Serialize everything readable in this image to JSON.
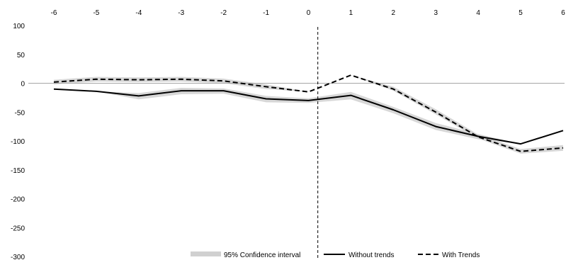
{
  "chart_data": {
    "type": "line",
    "x": [
      -6,
      -5,
      -4,
      -3,
      -2,
      -1,
      0,
      1,
      2,
      3,
      4,
      5,
      6
    ],
    "x_ticks": [
      "-6",
      "-5",
      "-4",
      "-3",
      "-2",
      "-1",
      "0",
      "1",
      "2",
      "3",
      "4",
      "5",
      "6"
    ],
    "y_ticks": [
      "100",
      "50",
      "0",
      "-50",
      "-100",
      "-150",
      "-200",
      "-250",
      "-300"
    ],
    "ylim": [
      -300,
      100
    ],
    "x_axis_position": "top",
    "reference_line_between": [
      0,
      1
    ],
    "grid": false,
    "legend_position": "bottom",
    "series": [
      {
        "name": "95% Confidence interval",
        "style": "band",
        "color": "#d0d0d0",
        "covers": [
          "Without trends",
          "With Trends"
        ]
      },
      {
        "name": "Without trends",
        "style": "solid",
        "color": "#000000",
        "values": [
          -10,
          -14,
          -22,
          -13,
          -13,
          -27,
          -30,
          -21,
          -46,
          -75,
          -92,
          -105,
          -82
        ],
        "ci_lower": [
          -10,
          -14,
          -28,
          -19,
          -18,
          -33,
          -34,
          -28,
          -52,
          -81,
          -97,
          -105,
          -82
        ],
        "ci_upper": [
          -10,
          -14,
          -17,
          -8,
          -9,
          -22,
          -26,
          -15,
          -41,
          -69,
          -88,
          -105,
          -82
        ]
      },
      {
        "name": "With Trends",
        "style": "dashed",
        "color": "#000000",
        "values": [
          2,
          7,
          6,
          7,
          4,
          -6,
          -15,
          14,
          -10,
          -50,
          -93,
          -118,
          -112
        ],
        "ci_lower": [
          -2,
          3,
          2,
          3,
          0,
          -10,
          -15,
          14,
          -13,
          -54,
          -96,
          -122,
          -117
        ],
        "ci_upper": [
          6,
          11,
          10,
          11,
          8,
          -2,
          -15,
          14,
          -6,
          -45,
          -89,
          -114,
          -107
        ]
      }
    ]
  }
}
